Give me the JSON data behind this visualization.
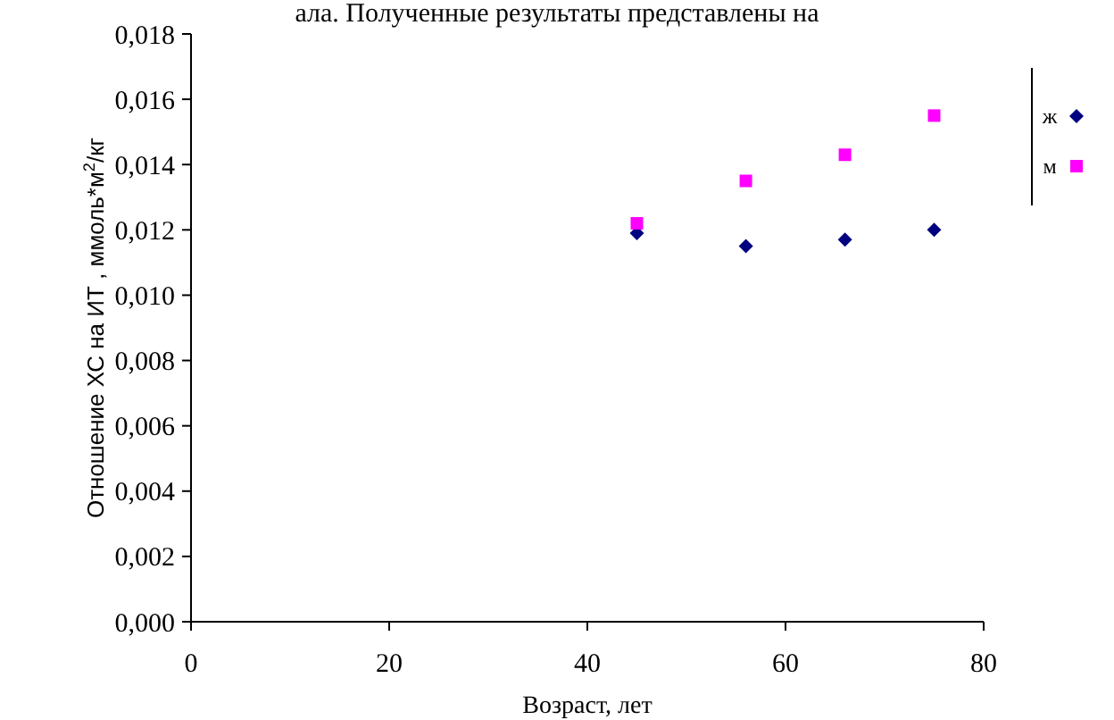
{
  "chart_data": {
    "type": "scatter",
    "xlabel": "Возраст, лет",
    "ylabel": "Отношение ХС  на ИТ , ммоль*м$^{2}$/кг",
    "annotations": [
      "ала. Полученные результаты представлены на"
    ],
    "x": [
      45,
      56,
      66,
      75
    ],
    "series": [
      {
        "name": "ж",
        "color": "#000080",
        "marker": "diamond",
        "values": [
          0.0119,
          0.0115,
          0.0117,
          0.012
        ]
      },
      {
        "name": "м",
        "color": "#ff00ff",
        "marker": "square",
        "values": [
          0.0122,
          0.0135,
          0.0143,
          0.0155
        ]
      }
    ],
    "xlim": [
      0,
      80
    ],
    "xticks": [
      0,
      20,
      40,
      60,
      80
    ],
    "ylim": [
      0,
      0.018
    ],
    "yticks": [
      {
        "value": 0,
        "label": "0,000"
      },
      {
        "value": 0.002,
        "label": "0,002"
      },
      {
        "value": 0.004,
        "label": "0,004"
      },
      {
        "value": 0.006,
        "label": "0,006"
      },
      {
        "value": 0.008,
        "label": "0,008"
      },
      {
        "value": 0.01,
        "label": "0,010"
      },
      {
        "value": 0.012,
        "label": "0,012"
      },
      {
        "value": 0.014,
        "label": "0,014"
      },
      {
        "value": 0.016,
        "label": "0,016"
      },
      {
        "value": 0.018,
        "label": "0,018"
      }
    ],
    "grid": false,
    "legend": "right"
  }
}
